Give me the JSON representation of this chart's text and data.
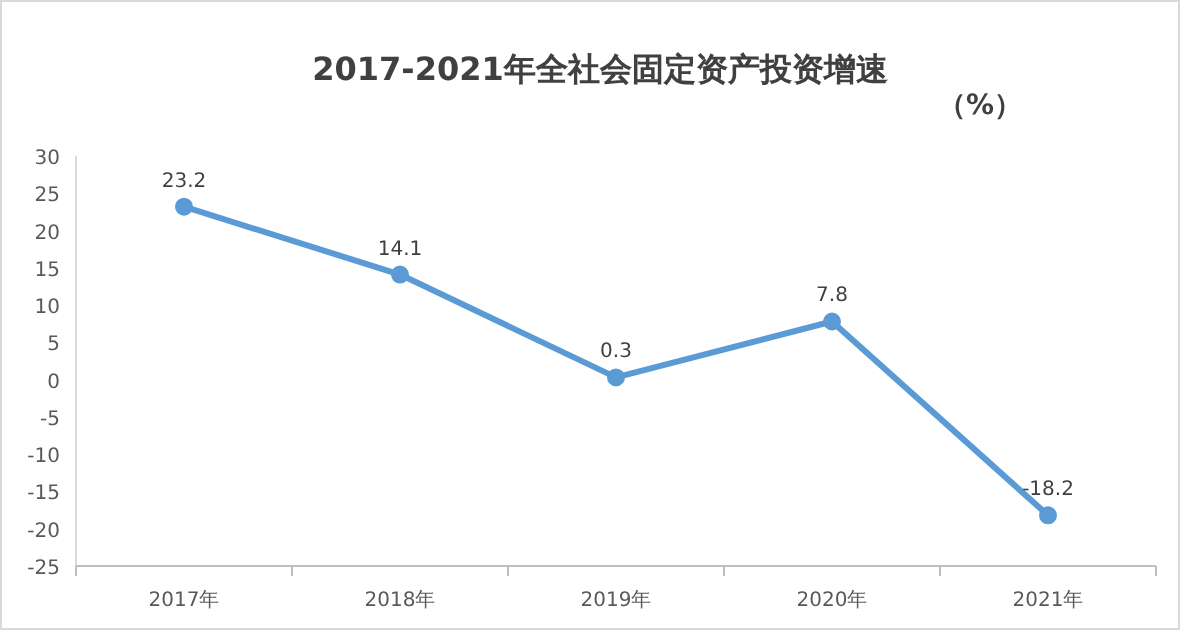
{
  "chart_data": {
    "type": "line",
    "title": "2017-2021年全社会固定资产投资增速",
    "ylabel": "（%）",
    "categories": [
      "2017年",
      "2018年",
      "2019年",
      "2020年",
      "2021年"
    ],
    "series": [
      {
        "color": "#5b9bd5",
        "values": [
          23.2,
          14.1,
          0.3,
          7.8,
          -18.2
        ]
      }
    ],
    "ylim": [
      -25,
      30
    ],
    "yticks": [
      -25,
      -20,
      -15,
      -10,
      -5,
      0,
      5,
      10,
      15,
      20,
      25,
      30
    ],
    "data_labels": true,
    "marker": "circle",
    "grid": false
  }
}
